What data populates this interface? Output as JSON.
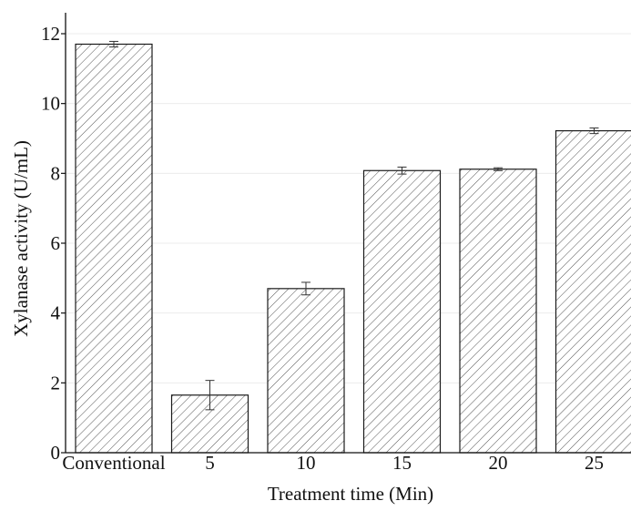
{
  "chart_data": {
    "type": "bar",
    "title": "",
    "xlabel": "Treatment time (Min)",
    "ylabel": "Xylanase activity (U/mL)",
    "categories": [
      "Conventional",
      "5",
      "10",
      "15",
      "20",
      "25"
    ],
    "values": [
      11.7,
      1.65,
      4.7,
      8.08,
      8.12,
      9.22
    ],
    "errors": [
      0.08,
      0.42,
      0.18,
      0.1,
      0.04,
      0.08
    ],
    "ylim": [
      0,
      12.6
    ],
    "yticks": [
      0,
      2,
      4,
      6,
      8,
      10,
      12
    ],
    "bar_fill": "hatched diagonal",
    "bar_color": "#ffffff",
    "hatch_color": "#555555",
    "edge_color": "#1a1a1a",
    "grid": "horizontal, faint",
    "legend": "none"
  }
}
